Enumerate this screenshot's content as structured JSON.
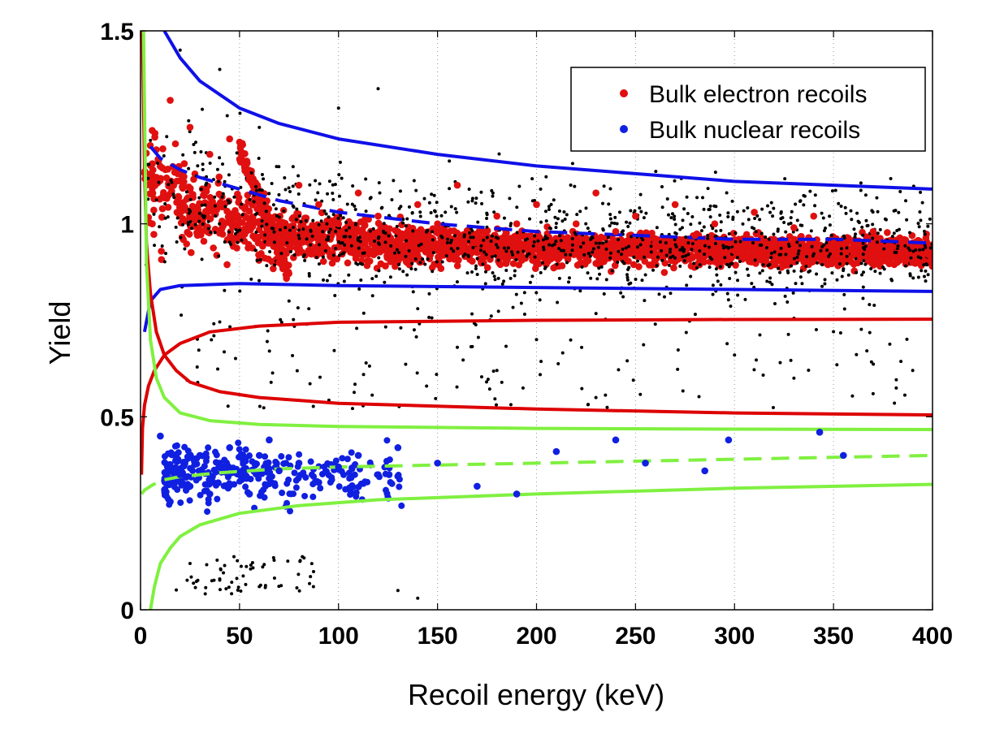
{
  "chart_data": {
    "type": "scatter",
    "title": "",
    "xlabel": "Recoil energy (keV)",
    "ylabel": "Yield",
    "xlim": [
      0,
      400
    ],
    "ylim": [
      0,
      1.5
    ],
    "xticks": [
      0,
      50,
      100,
      150,
      200,
      250,
      300,
      350,
      400
    ],
    "xtick_labels": [
      "0",
      "50",
      "100",
      "150",
      "200",
      "250",
      "300",
      "350",
      "400"
    ],
    "yticks": [
      0,
      0.5,
      1,
      1.5
    ],
    "ytick_labels": [
      "0",
      "0.5",
      "1",
      "1.5"
    ],
    "grid": "vertical dotted",
    "legend_position": "top-right",
    "legend": [
      {
        "name": "Bulk electron recoils",
        "color": "#e01010"
      },
      {
        "name": "Bulk nuclear recoils",
        "color": "#1020e0"
      }
    ],
    "colors": {
      "electron_points": "#e01010",
      "nuclear_points": "#1020e0",
      "other_points": "#000000",
      "er_band": "#1010e8",
      "nr_band": "#80f040",
      "threshold_curves": "#dd0000"
    },
    "scatter_series": [
      {
        "name": "Bulk electron recoils",
        "color": "#e01010",
        "points": [
          [
            15,
            1.32
          ],
          [
            25,
            1.25
          ],
          [
            35,
            1.18
          ],
          [
            45,
            1.22
          ],
          [
            55,
            1.12
          ],
          [
            60,
            1.05
          ],
          [
            65,
            0.95
          ],
          [
            70,
            0.9
          ],
          [
            80,
            1.1
          ],
          [
            90,
            1.05
          ],
          [
            100,
            1.0
          ],
          [
            110,
            1.08
          ],
          [
            120,
            1.02
          ],
          [
            130,
            0.98
          ],
          [
            140,
            1.05
          ],
          [
            150,
            1.0
          ],
          [
            160,
            1.1
          ],
          [
            170,
            0.95
          ],
          [
            180,
            1.02
          ],
          [
            190,
            1.0
          ],
          [
            200,
            1.05
          ],
          [
            210,
            0.92
          ],
          [
            220,
            1.0
          ],
          [
            230,
            1.08
          ],
          [
            240,
            0.98
          ],
          [
            250,
            1.02
          ],
          [
            260,
            0.95
          ],
          [
            270,
            1.05
          ],
          [
            280,
            0.97
          ],
          [
            290,
            1.0
          ],
          [
            300,
            0.93
          ],
          [
            310,
            1.03
          ],
          [
            320,
            0.96
          ],
          [
            330,
            0.99
          ],
          [
            340,
            1.02
          ],
          [
            350,
            0.95
          ],
          [
            360,
            0.92
          ],
          [
            370,
            0.98
          ],
          [
            380,
            0.94
          ],
          [
            390,
            0.9
          ],
          [
            398,
            0.92
          ]
        ]
      },
      {
        "name": "Bulk nuclear recoils",
        "color": "#1020e0",
        "points": [
          [
            10,
            0.45
          ],
          [
            15,
            0.28
          ],
          [
            20,
            0.35
          ],
          [
            25,
            0.32
          ],
          [
            30,
            0.4
          ],
          [
            35,
            0.3
          ],
          [
            40,
            0.38
          ],
          [
            45,
            0.42
          ],
          [
            50,
            0.35
          ],
          [
            55,
            0.3
          ],
          [
            60,
            0.4
          ],
          [
            65,
            0.44
          ],
          [
            70,
            0.36
          ],
          [
            80,
            0.38
          ],
          [
            90,
            0.33
          ],
          [
            100,
            0.37
          ],
          [
            110,
            0.4
          ],
          [
            120,
            0.35
          ],
          [
            130,
            0.42
          ],
          [
            150,
            0.38
          ],
          [
            170,
            0.32
          ],
          [
            190,
            0.3
          ],
          [
            210,
            0.41
          ],
          [
            240,
            0.44
          ],
          [
            255,
            0.38
          ],
          [
            285,
            0.36
          ],
          [
            297,
            0.44
          ],
          [
            343,
            0.46
          ],
          [
            355,
            0.4
          ]
        ]
      },
      {
        "name": "",
        "color": "#000000",
        "points": [
          [
            20,
            1.45
          ],
          [
            40,
            1.4
          ],
          [
            60,
            1.25
          ],
          [
            75,
            0.8
          ],
          [
            85,
            0.78
          ],
          [
            100,
            1.3
          ],
          [
            120,
            1.35
          ],
          [
            140,
            0.78
          ],
          [
            160,
            0.68
          ],
          [
            180,
            0.62
          ],
          [
            200,
            0.7
          ],
          [
            230,
            0.55
          ],
          [
            260,
            0.74
          ],
          [
            300,
            0.66
          ],
          [
            330,
            0.6
          ],
          [
            370,
            0.56
          ],
          [
            390,
            0.62
          ],
          [
            25,
            0.12
          ],
          [
            40,
            0.08
          ],
          [
            60,
            0.06
          ],
          [
            130,
            0.05
          ],
          [
            140,
            0.03
          ]
        ]
      }
    ],
    "line_series": [
      {
        "name": "",
        "color": "#1010e8",
        "style": "solid",
        "x": [
          12,
          20,
          30,
          50,
          70,
          100,
          150,
          200,
          250,
          300,
          350,
          400
        ],
        "y": [
          1.5,
          1.43,
          1.37,
          1.3,
          1.26,
          1.22,
          1.18,
          1.15,
          1.13,
          1.11,
          1.1,
          1.09
        ]
      },
      {
        "name": "",
        "color": "#1010e8",
        "style": "dashed",
        "x": [
          5,
          10,
          20,
          30,
          50,
          70,
          100,
          150,
          200,
          250,
          300,
          350,
          400
        ],
        "y": [
          1.2,
          1.17,
          1.14,
          1.12,
          1.09,
          1.06,
          1.03,
          1.0,
          0.98,
          0.97,
          0.96,
          0.96,
          0.95
        ]
      },
      {
        "name": "",
        "color": "#1010e8",
        "style": "solid",
        "x": [
          2,
          5,
          10,
          20,
          50,
          100,
          200,
          300,
          400
        ],
        "y": [
          0.72,
          0.8,
          0.83,
          0.84,
          0.845,
          0.84,
          0.835,
          0.83,
          0.825
        ]
      },
      {
        "name": "",
        "color": "#dd0000",
        "style": "solid",
        "x": [
          0.5,
          1,
          2,
          4,
          7,
          12,
          20,
          35,
          60,
          100,
          200,
          300,
          400
        ],
        "y": [
          0.35,
          0.47,
          0.53,
          0.58,
          0.62,
          0.66,
          0.69,
          0.72,
          0.735,
          0.745,
          0.75,
          0.752,
          0.753
        ]
      },
      {
        "name": "",
        "color": "#dd0000",
        "style": "solid",
        "x": [
          1,
          2,
          3,
          5,
          8,
          12,
          18,
          25,
          40,
          60,
          100,
          200,
          300,
          400
        ],
        "y": [
          1.5,
          1.15,
          0.95,
          0.82,
          0.72,
          0.66,
          0.62,
          0.59,
          0.565,
          0.55,
          0.535,
          0.52,
          0.51,
          0.505
        ]
      },
      {
        "name": "",
        "color": "#80f040",
        "style": "solid",
        "x": [
          1.5,
          3,
          5,
          8,
          12,
          20,
          35,
          60,
          100,
          200,
          300,
          400
        ],
        "y": [
          1.5,
          0.9,
          0.7,
          0.6,
          0.55,
          0.51,
          0.49,
          0.48,
          0.475,
          0.47,
          0.468,
          0.467
        ]
      },
      {
        "name": "",
        "color": "#80f040",
        "style": "dashed",
        "x": [
          0.5,
          2,
          5,
          10,
          20,
          40,
          70,
          100,
          200,
          300,
          400
        ],
        "y": [
          0.3,
          0.31,
          0.32,
          0.335,
          0.345,
          0.355,
          0.365,
          0.37,
          0.38,
          0.39,
          0.4
        ]
      },
      {
        "name": "",
        "color": "#80f040",
        "style": "solid",
        "x": [
          5,
          7,
          10,
          15,
          20,
          30,
          50,
          80,
          120,
          200,
          300,
          400
        ],
        "y": [
          0,
          0.06,
          0.12,
          0.16,
          0.19,
          0.22,
          0.25,
          0.27,
          0.285,
          0.3,
          0.315,
          0.325
        ]
      }
    ]
  }
}
